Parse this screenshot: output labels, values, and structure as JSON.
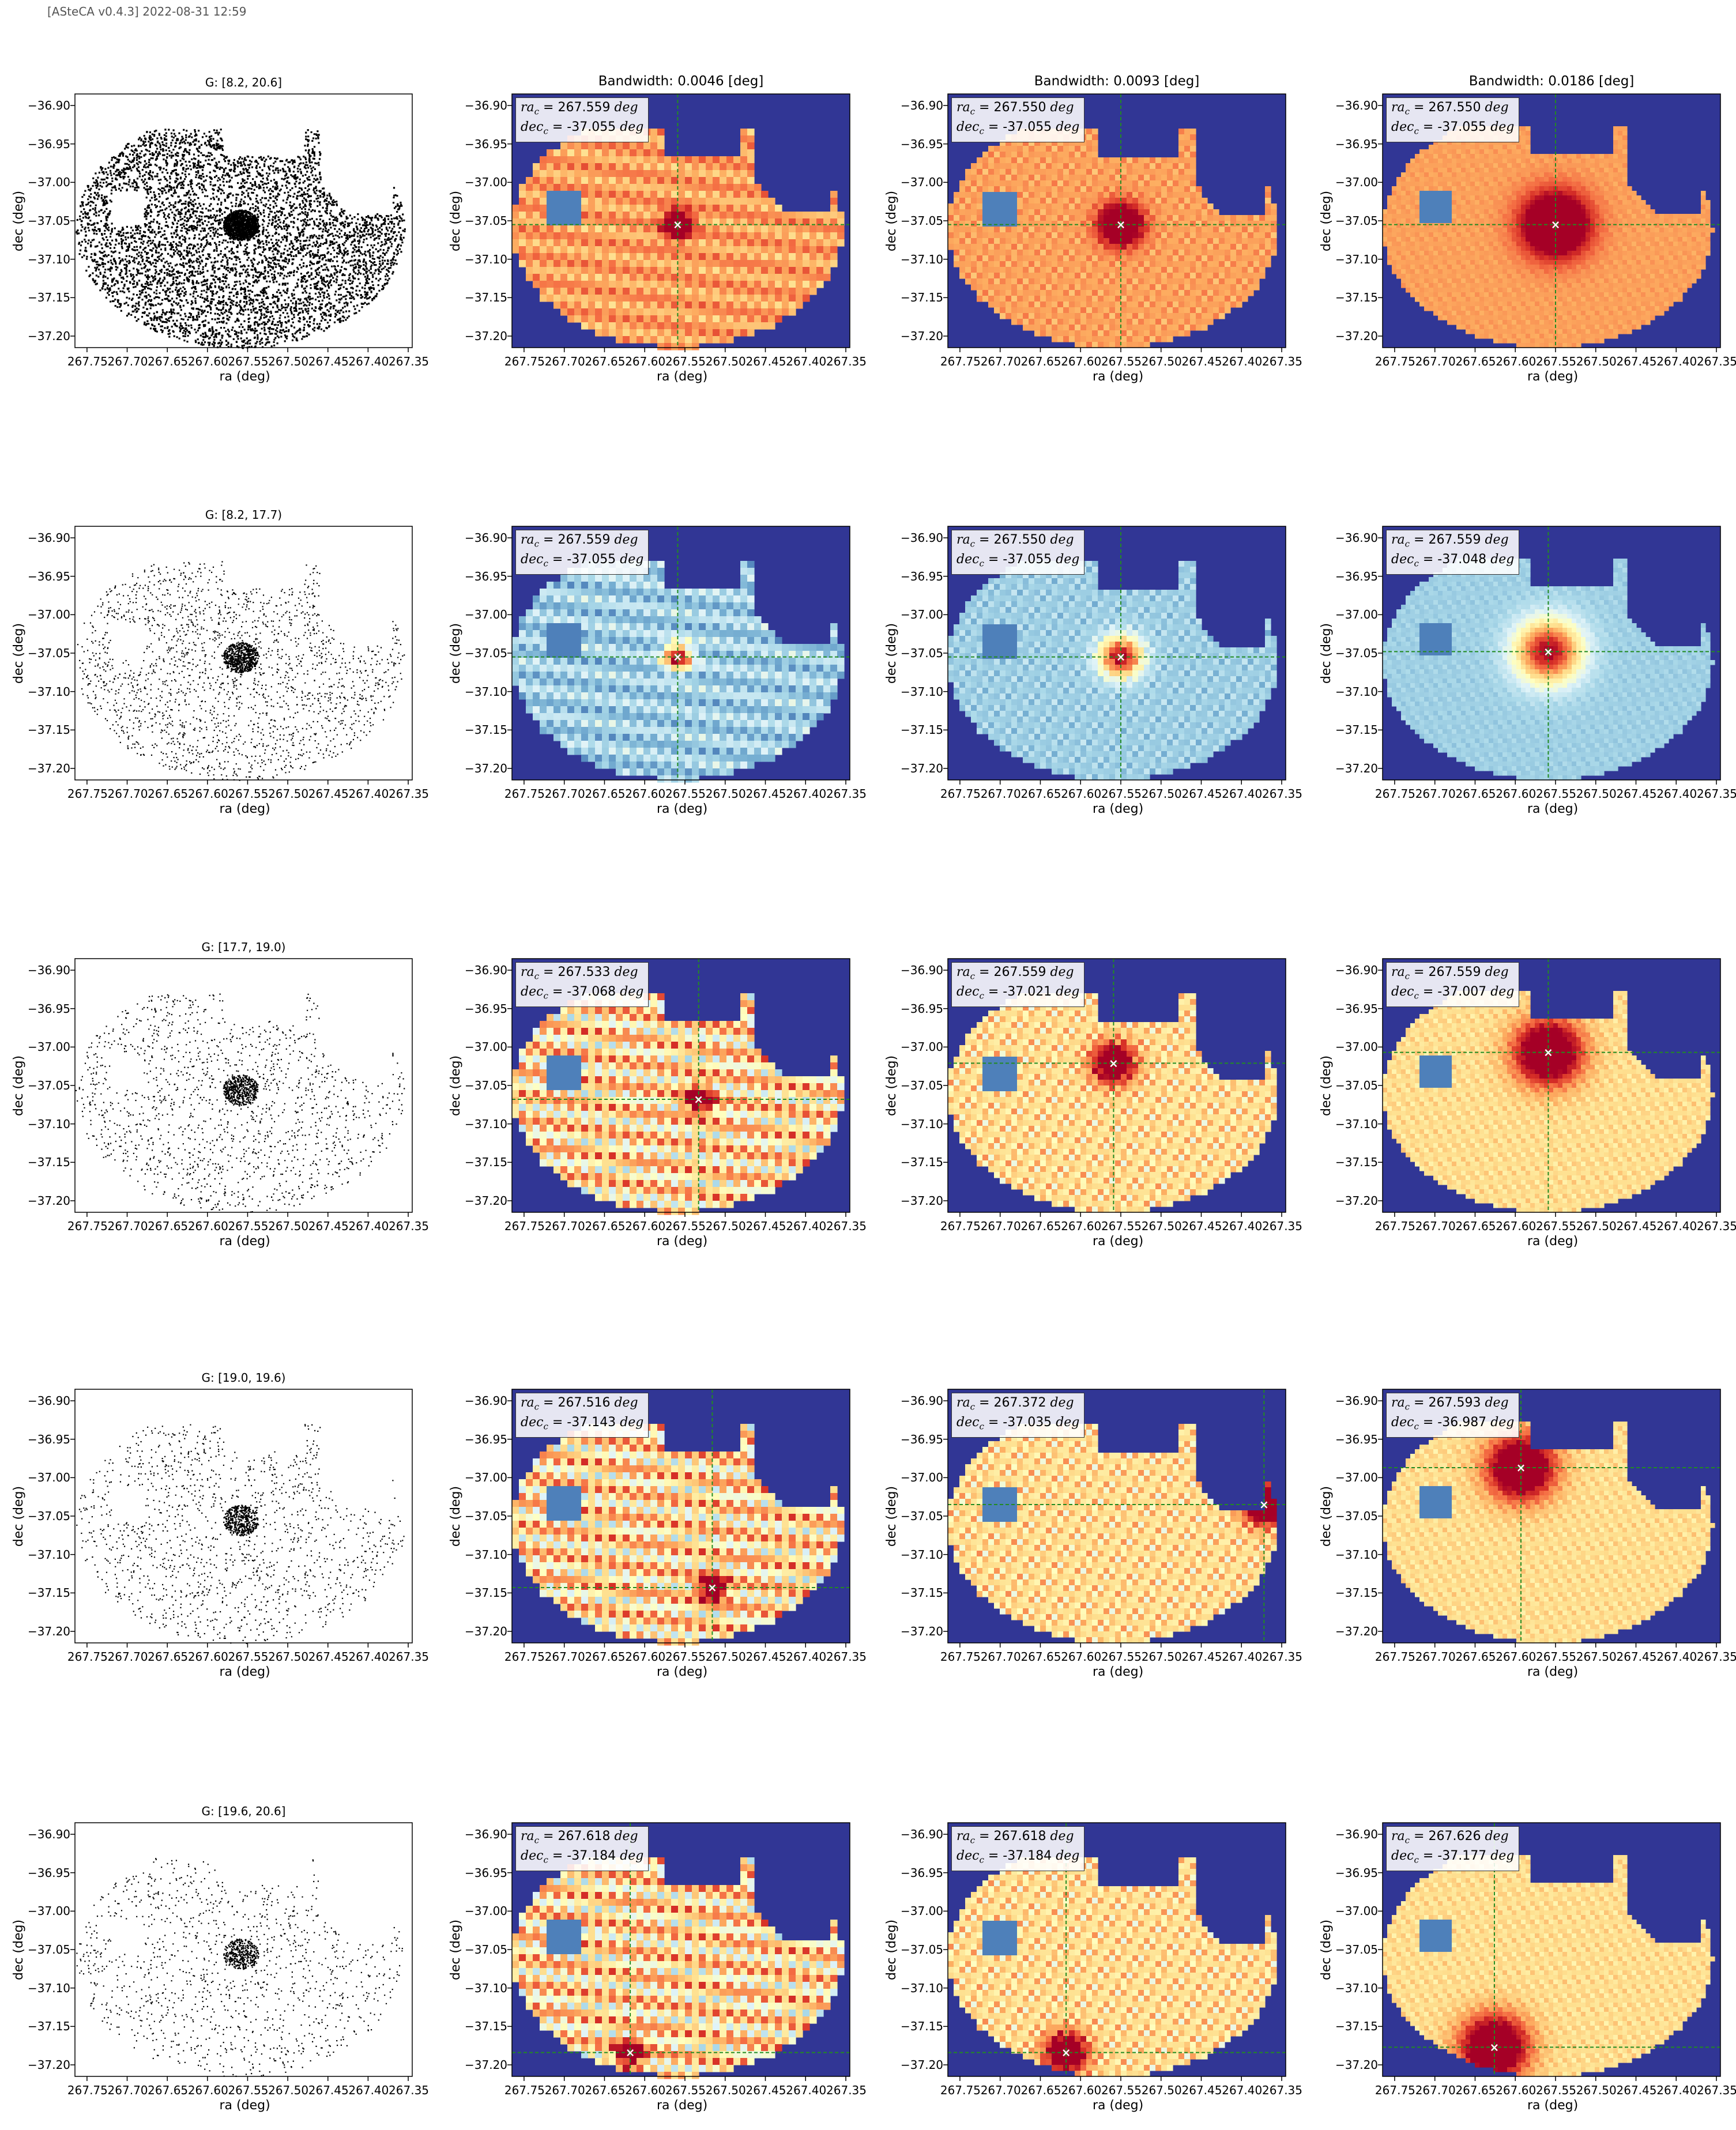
{
  "header": "[ASteCA v0.4.3] 2022-08-31 12:59",
  "axes": {
    "xlabel": "ra (deg)",
    "ylabel": "dec (deg)",
    "xticks": [
      "267.75",
      "267.70",
      "267.65",
      "267.60",
      "267.55",
      "267.50",
      "267.45",
      "267.40",
      "267.35"
    ],
    "yticks": [
      "−36.90",
      "−36.95",
      "−37.00",
      "−37.05",
      "−37.10",
      "−37.15",
      "−37.20"
    ],
    "xlim": [
      267.765,
      267.345
    ],
    "ylim": [
      -37.215,
      -36.885
    ]
  },
  "column_titles": [
    "",
    "Bandwidth: 0.0046 [deg]",
    "Bandwidth: 0.0093 [deg]",
    "Bandwidth: 0.0186 [deg]"
  ],
  "center_labels": {
    "ra": "ra",
    "dec": "dec",
    "sub": "c",
    "unit": "deg"
  },
  "rows": [
    {
      "scatter_title": "G: [8.2, 20.6]",
      "palette": "warm",
      "density": 1.0,
      "centers": [
        {
          "ra": "267.559",
          "dec": "-37.055"
        },
        {
          "ra": "267.550",
          "dec": "-37.055"
        },
        {
          "ra": "267.550",
          "dec": "-37.055"
        }
      ]
    },
    {
      "scatter_title": "G: [8.2, 17.7)",
      "palette": "cool",
      "density": 0.38,
      "centers": [
        {
          "ra": "267.559",
          "dec": "-37.055"
        },
        {
          "ra": "267.550",
          "dec": "-37.055"
        },
        {
          "ra": "267.559",
          "dec": "-37.048"
        }
      ]
    },
    {
      "scatter_title": "G: [17.7, 19.0)",
      "palette": "mixed",
      "density": 0.28,
      "centers": [
        {
          "ra": "267.533",
          "dec": "-37.068"
        },
        {
          "ra": "267.559",
          "dec": "-37.021"
        },
        {
          "ra": "267.559",
          "dec": "-37.007"
        }
      ]
    },
    {
      "scatter_title": "G: [19.0, 19.6)",
      "palette": "mixed",
      "density": 0.26,
      "centers": [
        {
          "ra": "267.516",
          "dec": "-37.143"
        },
        {
          "ra": "267.372",
          "dec": "-37.035"
        },
        {
          "ra": "267.593",
          "dec": "-36.987"
        }
      ]
    },
    {
      "scatter_title": "G: [19.6, 20.6]",
      "palette": "mixed",
      "density": 0.22,
      "centers": [
        {
          "ra": "267.618",
          "dec": "-37.184"
        },
        {
          "ra": "267.618",
          "dec": "-37.184"
        },
        {
          "ra": "267.626",
          "dec": "-37.177"
        }
      ]
    }
  ],
  "colors": {
    "low": "#313695",
    "high": "#a50026",
    "mid": "#ffffbf",
    "marker": "#ffffff",
    "crosshair": "#228b22"
  }
}
